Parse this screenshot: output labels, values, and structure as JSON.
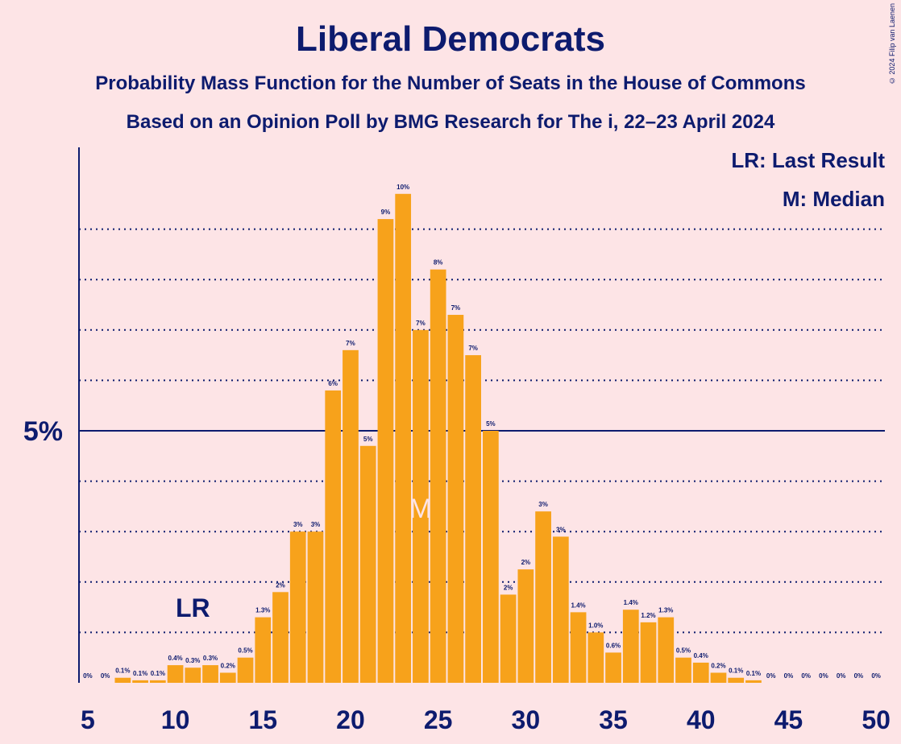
{
  "chart_data": {
    "type": "bar",
    "title": "Liberal Democrats",
    "subtitle": "Probability Mass Function for the Number of Seats in the House of Commons",
    "subtitle2": "Based on an Opinion Poll by BMG Research for The i, 22–23 April 2024",
    "legend": [
      "LR: Last Result",
      "M: Median"
    ],
    "legend_position": "top-right",
    "copyright": "© 2024 Filip van Laenen",
    "x": [
      5,
      6,
      7,
      8,
      9,
      10,
      11,
      12,
      13,
      14,
      15,
      16,
      17,
      18,
      19,
      20,
      21,
      22,
      23,
      24,
      25,
      26,
      27,
      28,
      29,
      30,
      31,
      32,
      33,
      34,
      35,
      36,
      37,
      38,
      39,
      40,
      41,
      42,
      43,
      44,
      45,
      46,
      47,
      48,
      49,
      50
    ],
    "values": [
      0,
      0,
      0.1,
      0.05,
      0.05,
      0.35,
      0.3,
      0.35,
      0.2,
      0.5,
      1.3,
      1.8,
      3.0,
      3.0,
      5.8,
      6.6,
      4.7,
      9.2,
      9.7,
      7.0,
      8.2,
      7.3,
      6.5,
      5.0,
      1.75,
      2.25,
      3.4,
      2.9,
      1.4,
      1.0,
      0.6,
      1.45,
      1.2,
      1.3,
      0.5,
      0.4,
      0.2,
      0.1,
      0.05,
      0,
      0,
      0,
      0,
      0,
      0,
      0
    ],
    "labels": [
      "0%",
      "0%",
      "0.1%",
      "0.1%",
      "0.1%",
      "0.4%",
      "0.3%",
      "0.3%",
      "0.2%",
      "0.5%",
      "1.3%",
      "2%",
      "3%",
      "3%",
      "6%",
      "7%",
      "5%",
      "9%",
      "10%",
      "7%",
      "8%",
      "7%",
      "7%",
      "5%",
      "2%",
      "2%",
      "3%",
      "3%",
      "1.4%",
      "1.0%",
      "0.6%",
      "1.4%",
      "1.2%",
      "1.3%",
      "0.5%",
      "0.4%",
      "0.2%",
      "0.1%",
      "0.1%",
      "0%",
      "0%",
      "0%",
      "0%",
      "0%",
      "0%",
      "0%"
    ],
    "x_ticks": [
      5,
      10,
      15,
      20,
      25,
      30,
      35,
      40,
      45,
      50
    ],
    "y_tick_label": "5%",
    "y_major": 5,
    "y_minor_step": 1,
    "ylim": [
      0,
      10.5
    ],
    "last_result": {
      "seat": 11,
      "label": "LR"
    },
    "median": {
      "seat": 24,
      "label": "M"
    },
    "colors": {
      "bar": "#f7a21b",
      "text": "#0d1b6e",
      "background": "#fde4e6",
      "median_label": "#fde4e6"
    }
  }
}
